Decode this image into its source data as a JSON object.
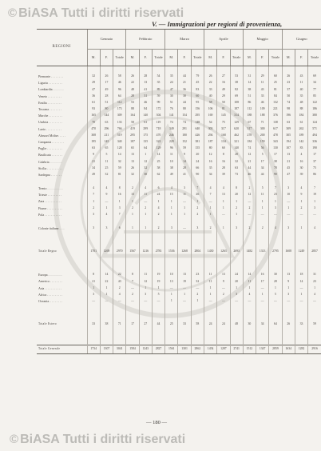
{
  "header": {
    "watermark_text": "BiASA Tutti i diritti riservati",
    "table_title": "V. — Immigrazioni per regioni di provenienza,"
  },
  "footer": {
    "watermark_text": "BiASA Tutti i diritti riservati",
    "page_number": "— 180 —"
  },
  "table": {
    "regioni_label": "REGIONI",
    "months": [
      "Gennaio",
      "Febbraio",
      "Marzo",
      "Aprile",
      "Maggio",
      "Giugno"
    ],
    "subheaders": [
      "M.",
      "F.",
      "Totale"
    ],
    "rows": [
      {
        "label": "Piemonte . . . . . . . .",
        "values": [
          "32",
          "26",
          "58",
          "26",
          "28",
          "54",
          "35",
          "44",
          "79",
          "26",
          "27",
          "53",
          "31",
          "29",
          "60",
          "26",
          "43",
          "69"
        ]
      },
      {
        "label": "Liguria . . . . . . . . .",
        "values": [
          "29",
          "17",
          "46",
          "22",
          "13",
          "35",
          "24",
          "21",
          "45",
          "22",
          "16",
          "38",
          "14",
          "11",
          "25",
          "23",
          "11",
          "34"
        ]
      },
      {
        "label": "Lombardia . . . . . . .",
        "values": [
          "47",
          "49",
          "96",
          "48",
          "41",
          "89",
          "47",
          "36",
          "83",
          "33",
          "49",
          "82",
          "38",
          "43",
          "81",
          "37",
          "40",
          "77"
        ]
      },
      {
        "label": "Veneto . . . . . . . . .",
        "values": [
          "36",
          "28",
          "64",
          "28",
          "31",
          "59",
          "30",
          "30",
          "60",
          "40",
          "29",
          "69",
          "51",
          "33",
          "84",
          "50",
          "35",
          "85"
        ]
      },
      {
        "label": "Emilia . . . . . . . . .",
        "values": [
          "61",
          "51",
          "112",
          "53",
          "46",
          "99",
          "51",
          "44",
          "95",
          "58",
          "50",
          "108",
          "86",
          "46",
          "132",
          "74",
          "48",
          "122"
        ]
      },
      {
        "label": "Toscana . . . . . . . .",
        "values": [
          "93",
          "80",
          "173",
          "88",
          "84",
          "172",
          "76",
          "80",
          "156",
          "106",
          "81",
          "187",
          "112",
          "109",
          "221",
          "98",
          "88",
          "186"
        ]
      },
      {
        "label": "Marche . . . . . . . . .",
        "values": [
          "165",
          "144",
          "309",
          "164",
          "140",
          "304",
          "141",
          "154",
          "295",
          "169",
          "145",
          "314",
          "188",
          "188",
          "376",
          "196",
          "184",
          "380"
        ]
      },
      {
        "label": "Umbria . . . . . . . . .",
        "values": [
          "70",
          "63",
          "133",
          "58",
          "61",
          "119",
          "74",
          "74",
          "148",
          "54",
          "75",
          "129",
          "67",
          "71",
          "138",
          "63",
          "61",
          "124"
        ]
      },
      {
        "label": "Lazio . . . . . . . . . .",
        "values": [
          "470",
          "296",
          "766",
          "419",
          "299",
          "718",
          "349",
          "291",
          "640",
          "303",
          "317",
          "620",
          "317",
          "300",
          "617",
          "309",
          "262",
          "571"
        ]
      },
      {
        "label": "Abruzzi Molise. . . . .",
        "values": [
          "308",
          "211",
          "519",
          "295",
          "175",
          "470",
          "246",
          "180",
          "426",
          "294",
          "168",
          "462",
          "278",
          "200",
          "478",
          "305",
          "189",
          "494"
        ]
      },
      {
        "label": "Campania . . . . . . . .",
        "values": [
          "195",
          "145",
          "340",
          "187",
          "135",
          "322",
          "229",
          "152",
          "381",
          "187",
          "134",
          "321",
          "184",
          "159",
          "343",
          "194",
          "142",
          "336"
        ]
      },
      {
        "label": "Puglie . . . . . . . . . .",
        "values": [
          "63",
          "65",
          "128",
          "65",
          "64",
          "129",
          "96",
          "59",
          "155",
          "80",
          "60",
          "140",
          "74",
          "56",
          "130",
          "107",
          "83",
          "190"
        ]
      },
      {
        "label": "Basilicata . . . . . . .",
        "values": [
          "9",
          "5",
          "14",
          "13",
          "1",
          "14",
          "11",
          "9",
          "20",
          "12",
          "8",
          "20",
          "12",
          "5",
          "17",
          "13",
          "4",
          "17"
        ]
      },
      {
        "label": "Calabria . . . . . . . .",
        "values": [
          "21",
          "11",
          "32",
          "13",
          "12",
          "25",
          "10",
          "14",
          "24",
          "16",
          "16",
          "32",
          "21",
          "17",
          "38",
          "21",
          "16",
          "37"
        ]
      },
      {
        "label": "Sicilia . . . . . . . . . .",
        "values": [
          "34",
          "25",
          "59",
          "26",
          "32",
          "58",
          "38",
          "28",
          "66",
          "35",
          "28",
          "63",
          "44",
          "34",
          "78",
          "45",
          "30",
          "75"
        ]
      },
      {
        "label": "Sardegna . . . . . . .",
        "values": [
          "49",
          "32",
          "81",
          "32",
          "30",
          "62",
          "49",
          "41",
          "90",
          "34",
          "39",
          "73",
          "46",
          "44",
          "90",
          "47",
          "39",
          "86"
        ]
      }
    ],
    "rows_b": [
      {
        "label": "Trento . . . . . . . . . .",
        "values": [
          "4",
          "4",
          "8",
          "2",
          "4",
          "6",
          "4",
          "3",
          "7",
          "4",
          "4",
          "8",
          "2",
          "5",
          "7",
          "3",
          "4",
          "7"
        ]
      },
      {
        "label": "Trieste . . . . . . . . .",
        "values": [
          "7",
          "9",
          "16",
          "13",
          "11",
          "24",
          "15",
          "11",
          "26",
          "7",
          "13",
          "20",
          "12",
          "11",
          "23",
          "10",
          "9",
          "19"
        ]
      },
      {
        "label": "Zara . . . . . . . . . . .",
        "values": [
          "1",
          "—",
          "1",
          "1",
          "—",
          "1",
          "1",
          "—",
          "1",
          "—",
          "1",
          "1",
          "—",
          "1",
          "1",
          "—",
          "1",
          "1"
        ]
      },
      {
        "label": "Fiume . . . . . . . . . .",
        "values": [
          "2",
          "1",
          "3",
          "2",
          "2",
          "4",
          "1",
          "1",
          "2",
          "1",
          "1",
          "2",
          "2",
          "1",
          "3",
          "1",
          "2",
          "3"
        ]
      },
      {
        "label": "Pola . . . . . . . . . . .",
        "values": [
          "3",
          "4",
          "7",
          "1",
          "1",
          "2",
          "1",
          "1",
          "2",
          "1",
          "—",
          "1",
          "—",
          "—",
          "—",
          "—",
          "—",
          "—"
        ]
      }
    ],
    "colonie_row": {
      "label": "Colonie italiane. . . .",
      "values": [
        "3",
        "3",
        "6",
        "1",
        "1",
        "2",
        "3",
        "—",
        "3",
        "2",
        "1",
        "3",
        "2",
        "2",
        "4",
        "3",
        "1",
        "4"
      ]
    },
    "totale_regno_row": {
      "label": "Totale Regno",
      "values": [
        "1701",
        "1269",
        "2970",
        "1567",
        "1216",
        "2783",
        "1536",
        "1268",
        "2804",
        "1430",
        "1263",
        "2693",
        "1482",
        "1313",
        "2795",
        "1608",
        "1249",
        "2857"
      ]
    },
    "foreign_rows": [
      {
        "label": "Europa . . . . . . . . .",
        "values": [
          "8",
          "14",
          "22",
          "8",
          "11",
          "19",
          "10",
          "13",
          "23",
          "11",
          "13",
          "24",
          "14",
          "16",
          "30",
          "13",
          "18",
          "31"
        ]
      },
      {
        "label": "America . . . . . . . .",
        "values": [
          "21",
          "22",
          "43",
          "7",
          "12",
          "19",
          "13",
          "19",
          "32",
          "11",
          "9",
          "20",
          "11",
          "17",
          "28",
          "9",
          "14",
          "23"
        ]
      },
      {
        "label": "Asia . . . . . . . . . . .",
        "values": [
          "1",
          "1",
          "2",
          "—",
          "1",
          "1",
          "—",
          "—",
          "—",
          "1",
          "—",
          "1",
          "1",
          "—",
          "1",
          "1",
          "—",
          "1"
        ]
      },
      {
        "label": "Africa . . . . . . . . . .",
        "values": [
          "3",
          "1",
          "4",
          "2",
          "3",
          "5",
          "1",
          "1",
          "2",
          "1",
          "2",
          "3",
          "4",
          "1",
          "5",
          "3",
          "1",
          "4"
        ]
      },
      {
        "label": "Oceania. . . . . . . . .",
        "values": [
          "—",
          "—",
          "—",
          "—",
          "—",
          "—",
          "1",
          "—",
          "1",
          "—",
          "—",
          "—",
          "—",
          "—",
          "—",
          "—",
          "—",
          "—"
        ]
      }
    ],
    "totale_estero_row": {
      "label": "Totale Estero",
      "values": [
        "33",
        "38",
        "71",
        "17",
        "27",
        "44",
        "25",
        "33",
        "58",
        "24",
        "24",
        "48",
        "30",
        "34",
        "64",
        "26",
        "33",
        "59"
      ]
    },
    "totale_generale_row": {
      "label": "Totale Generale",
      "values": [
        "1734",
        "1307",
        "3041",
        "1584",
        "1243",
        "2827",
        "1561",
        "1301",
        "2862",
        "1454",
        "1287",
        "2741",
        "1512",
        "1347",
        "2859",
        "1634",
        "1282",
        "2916"
      ]
    }
  }
}
